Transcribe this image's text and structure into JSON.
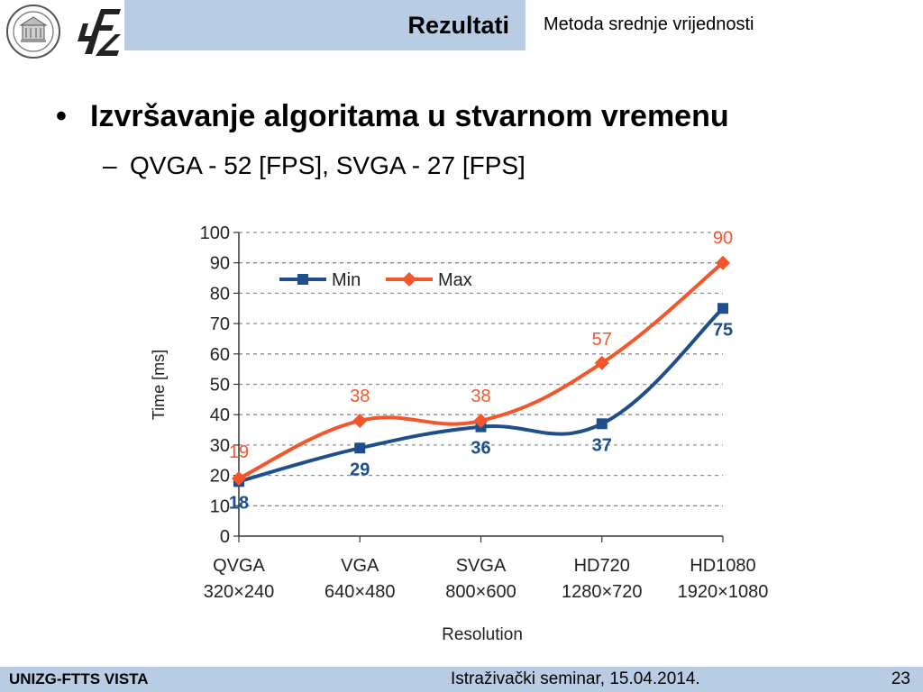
{
  "header": {
    "title": "Rezultati",
    "subtitle": "Metoda srednje vrijednosti"
  },
  "content": {
    "bullet": "Izvršavanje algoritama u stvarnom vremenu",
    "sub_bullet": "QVGA - 52 [FPS], SVGA - 27 [FPS]"
  },
  "colors": {
    "header_band": "#b8cce4",
    "min_series": "#1f4e8c",
    "max_series": "#f4552a"
  },
  "icons": {
    "university_seal": "seal-icon",
    "faculty_logo": "ftz-logo-icon"
  },
  "chart_data": {
    "type": "line",
    "categories": [
      "QVGA\n320×240",
      "VGA\n640×480",
      "SVGA\n800×600",
      "HD720\n1280×720",
      "HD1080\n1920×1080"
    ],
    "category_names": [
      "QVGA",
      "VGA",
      "SVGA",
      "HD720",
      "HD1080"
    ],
    "category_resolutions": [
      "320×240",
      "640×480",
      "800×600",
      "1280×720",
      "1920×1080"
    ],
    "series": [
      {
        "name": "Min",
        "values": [
          18,
          29,
          36,
          37,
          75
        ],
        "color": "#1f4e8c",
        "marker": "square"
      },
      {
        "name": "Max",
        "values": [
          19,
          38,
          38,
          57,
          90
        ],
        "color": "#f4552a",
        "marker": "diamond"
      }
    ],
    "xlabel": "Resolution",
    "ylabel": "Time [ms]",
    "ylim": [
      0,
      100
    ],
    "yticks": [
      0,
      10,
      20,
      30,
      40,
      50,
      60,
      70,
      80,
      90,
      100
    ],
    "grid": true,
    "legend_position": "top-left"
  },
  "footer": {
    "left": "UNIZG-FTTS VISTA",
    "center": "Istraživački seminar, 15.04.2014.",
    "page": "23"
  }
}
